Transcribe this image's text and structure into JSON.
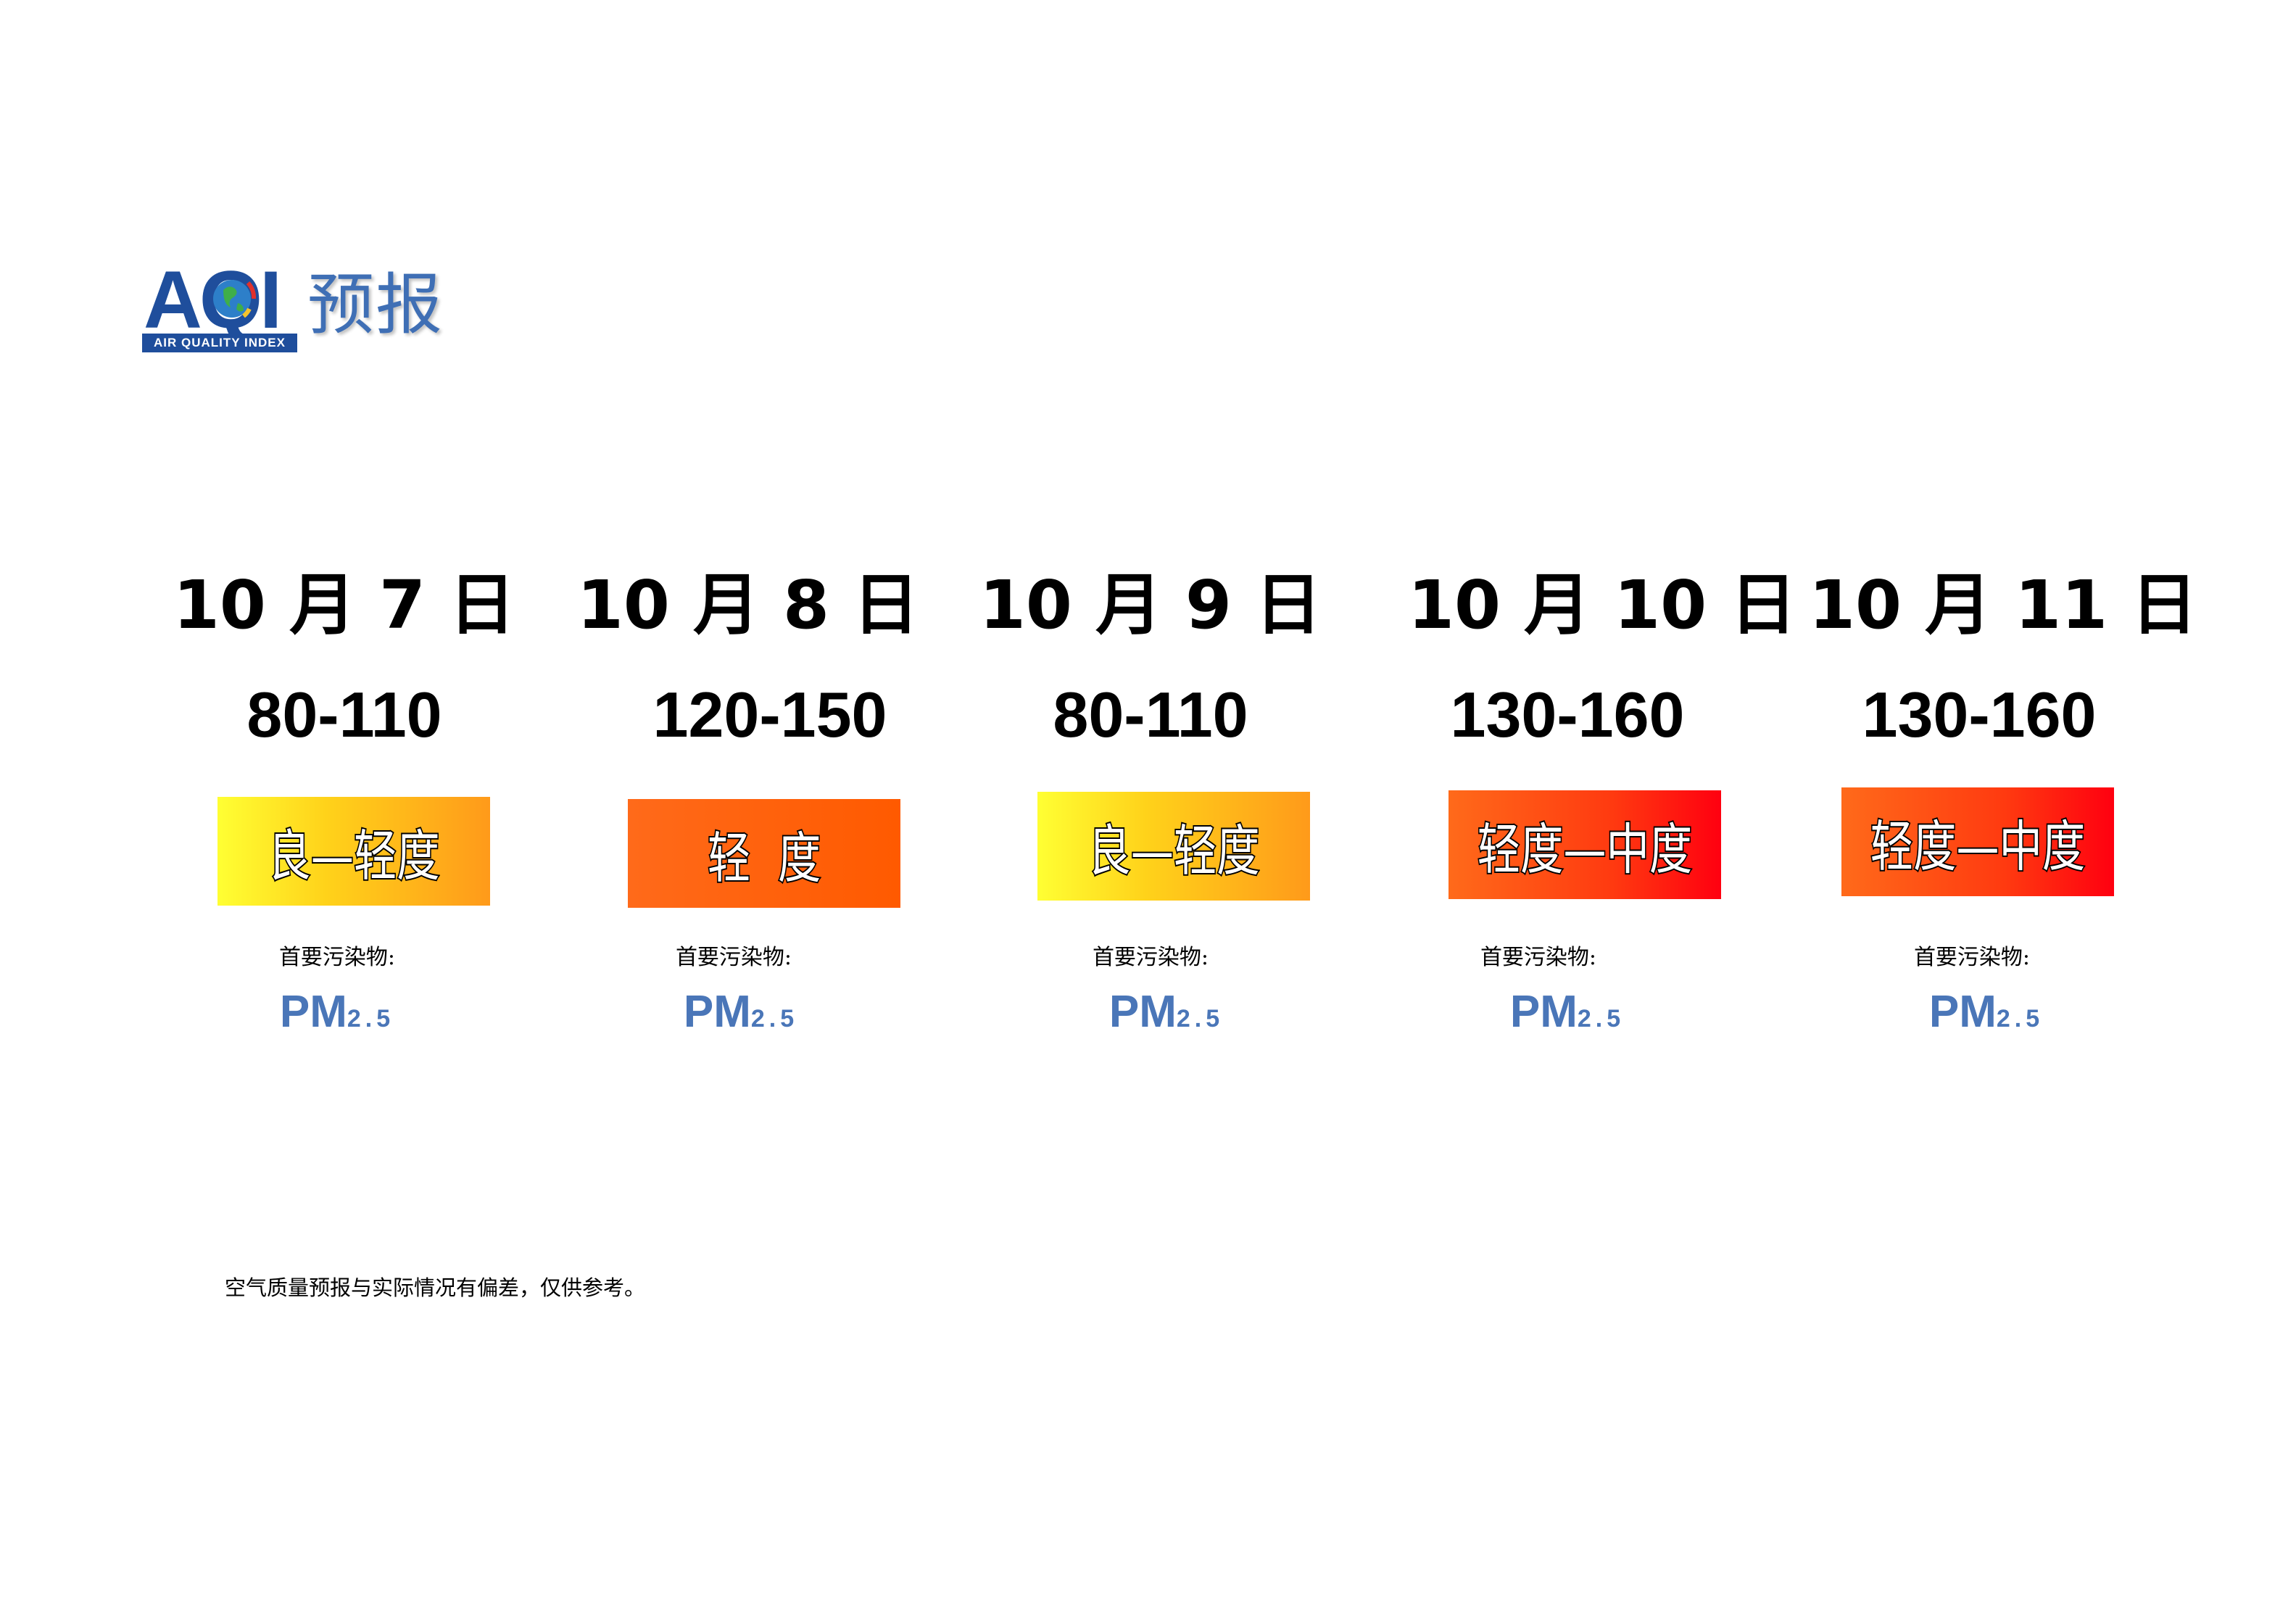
{
  "logo": {
    "letters": "AQI",
    "subtitle": "AIR QUALITY INDEX",
    "title": "预报",
    "colors": {
      "text": "#3f6fb5",
      "strip": "#1f4e9c"
    }
  },
  "forecast": [
    {
      "date": "10 月 7 日",
      "aqi_range": "80-110",
      "level": "良—轻度",
      "pollutant_label": "首要污染物:",
      "pollutant": "PM",
      "pollutant_sub": "2.5",
      "gradient": [
        "#ffff33",
        "#ff9a1a"
      ]
    },
    {
      "date": "10 月 8 日",
      "aqi_range": "120-150",
      "level": "轻  度",
      "pollutant_label": "首要污染物:",
      "pollutant": "PM",
      "pollutant_sub": "2.5",
      "gradient": [
        "#ff6a1a",
        "#ff5a00"
      ]
    },
    {
      "date": "10 月 9 日",
      "aqi_range": "80-110",
      "level": "良—轻度",
      "pollutant_label": "首要污染物:",
      "pollutant": "PM",
      "pollutant_sub": "2.5",
      "gradient": [
        "#ffff33",
        "#ff9a1a"
      ]
    },
    {
      "date": "10 月 10 日",
      "aqi_range": "130-160",
      "level": "轻度—中度",
      "pollutant_label": "首要污染物:",
      "pollutant": "PM",
      "pollutant_sub": "2.5",
      "gradient": [
        "#ff6a1a",
        "#ff0010"
      ]
    },
    {
      "date": "10 月 11 日",
      "aqi_range": "130-160",
      "level": "轻度—中度",
      "pollutant_label": "首要污染物:",
      "pollutant": "PM",
      "pollutant_sub": "2.5",
      "gradient": [
        "#ff6a1a",
        "#ff0010"
      ]
    }
  ],
  "disclaimer": "空气质量预报与实际情况有偏差，仅供参考。"
}
